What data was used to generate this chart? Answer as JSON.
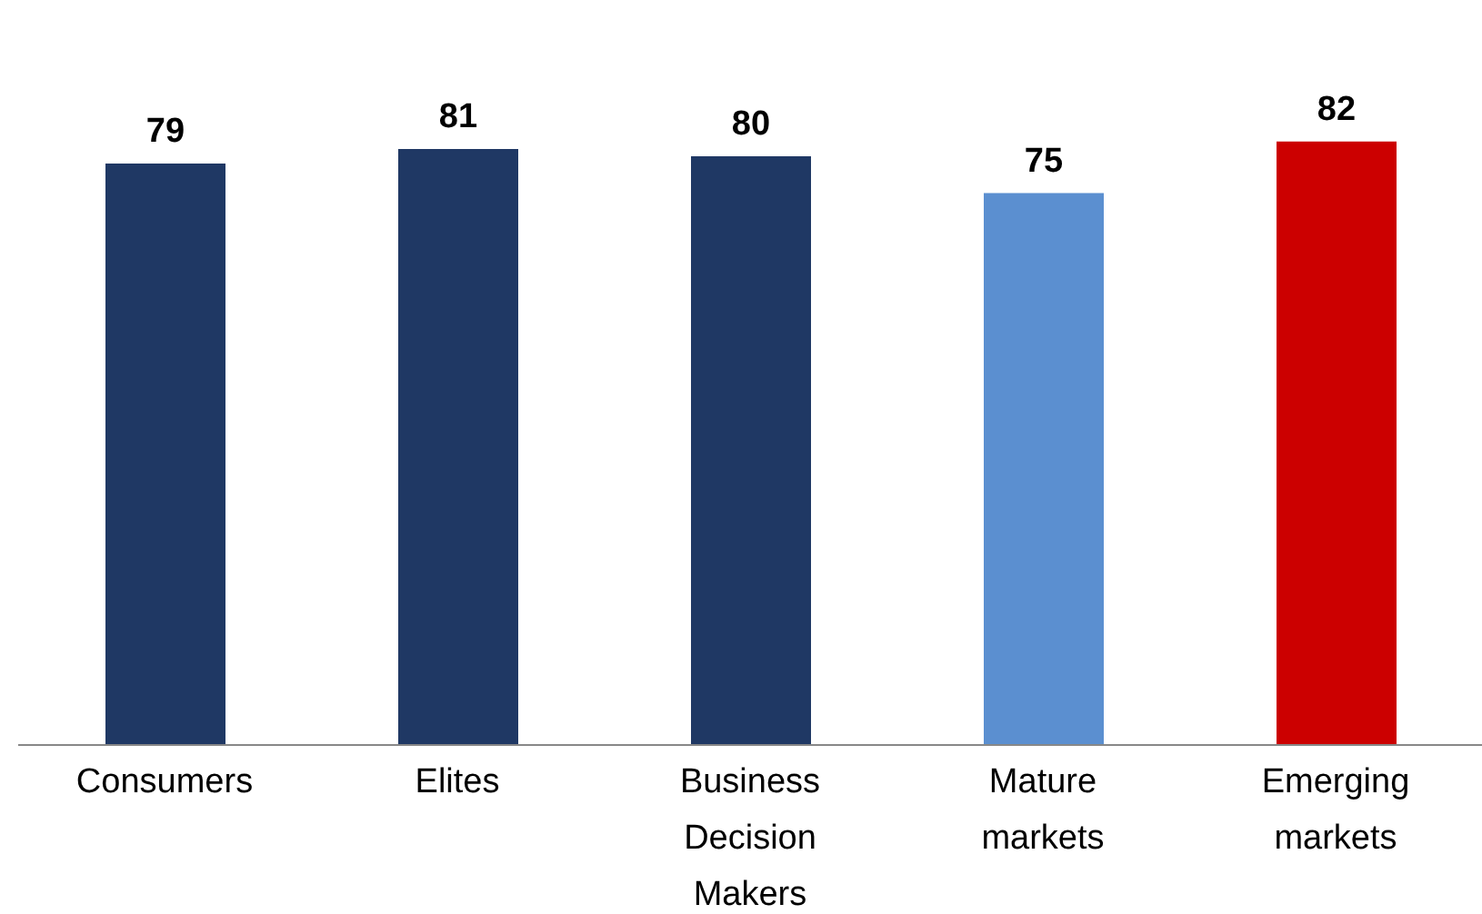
{
  "chart_data": {
    "type": "bar",
    "categories": [
      "Consumers",
      "Elites",
      "Business Decision Makers",
      "Mature markets",
      "Emerging markets"
    ],
    "values": [
      79,
      81,
      80,
      75,
      82
    ],
    "colors": [
      "#1f3864",
      "#1f3864",
      "#1f3864",
      "#5b8fd0",
      "#cc0000"
    ],
    "data_labels": true
  }
}
